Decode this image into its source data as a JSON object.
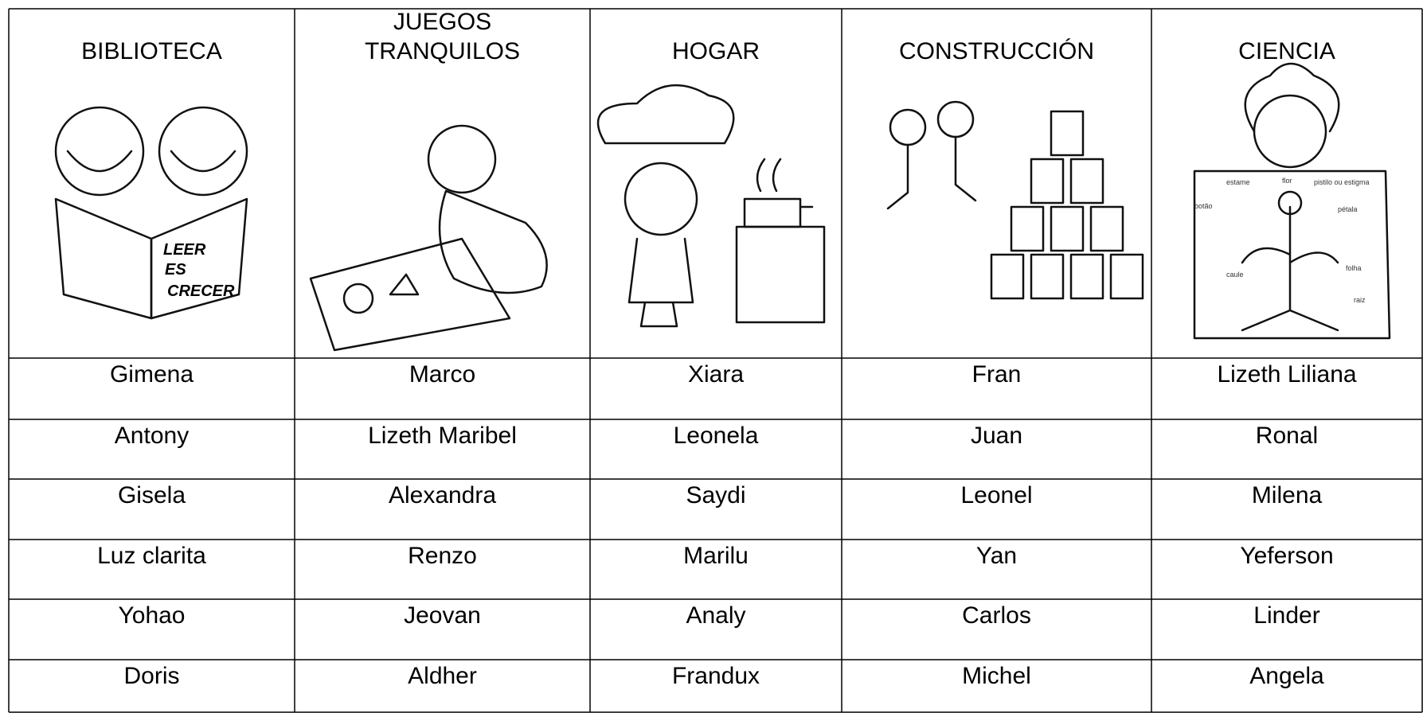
{
  "header": [
    "BIBLIOTECA",
    "JUEGOS\nTRANQUILOS",
    "HOGAR",
    "CONSTRUCCIÓN",
    "CIENCIA"
  ],
  "rows": [
    [
      "Gimena",
      "Marco",
      "Xiara",
      "Fran",
      "Lizeth Liliana"
    ],
    [
      "Antony",
      "Lizeth Maribel",
      "Leonela",
      "Juan",
      "Ronal"
    ],
    [
      "Gisela",
      "Alexandra",
      "Saydi",
      "Leonel",
      "Milena"
    ],
    [
      "Luz clarita",
      "Renzo",
      "Marilu",
      "Yan",
      "Yeferson"
    ],
    [
      "Yohao",
      "Jeovan",
      "Analy",
      "Carlos",
      "Linder"
    ],
    [
      "Doris",
      "Aldher",
      "Frandux",
      "Michel",
      "Angela"
    ]
  ],
  "book_text": [
    "LEER",
    "ES",
    "CRECER"
  ],
  "flower_labels": [
    "flor",
    "pistilo ou estigma",
    "estame",
    "botão",
    "pétala",
    "caule",
    "folha",
    "raiz"
  ]
}
